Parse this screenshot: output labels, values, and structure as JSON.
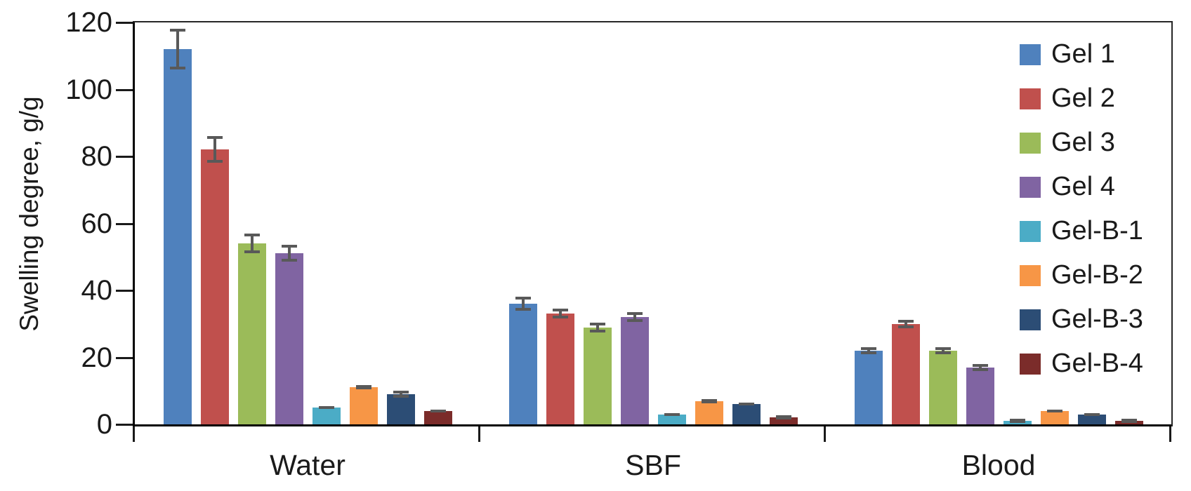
{
  "chart_data": {
    "type": "bar",
    "title": "",
    "ylabel": "Swelling degree, g/g",
    "xlabel": "",
    "categories": [
      "Water",
      "SBF",
      "Blood"
    ],
    "series": [
      {
        "name": "Gel 1",
        "color": "#4F81BD",
        "values": [
          112,
          36,
          22
        ],
        "errors": [
          6,
          2,
          1
        ]
      },
      {
        "name": "Gel 2",
        "color": "#C0504D",
        "values": [
          82,
          33,
          30
        ],
        "errors": [
          4,
          1.5,
          1.2
        ]
      },
      {
        "name": "Gel 3",
        "color": "#9BBB59",
        "values": [
          54,
          29,
          22
        ],
        "errors": [
          3,
          1.5,
          1
        ]
      },
      {
        "name": "Gel 4",
        "color": "#8064A2",
        "values": [
          51,
          32,
          17
        ],
        "errors": [
          2.5,
          1.5,
          1
        ]
      },
      {
        "name": "Gel-B-1",
        "color": "#4BACC6",
        "values": [
          5,
          3,
          1
        ],
        "errors": [
          0.5,
          0.4,
          0.3
        ]
      },
      {
        "name": "Gel-B-2",
        "color": "#F79646",
        "values": [
          11,
          7,
          4
        ],
        "errors": [
          0.7,
          0.6,
          0.4
        ]
      },
      {
        "name": "Gel-B-3",
        "color": "#2C4D75",
        "values": [
          9,
          6,
          3
        ],
        "errors": [
          1,
          0.4,
          0.5
        ]
      },
      {
        "name": "Gel-B-4",
        "color": "#7B2C2A",
        "values": [
          4,
          2,
          1
        ],
        "errors": [
          0.5,
          0.3,
          0.3
        ]
      }
    ],
    "ylim": [
      0,
      120
    ],
    "yticks": [
      0,
      20,
      40,
      60,
      80,
      100,
      120
    ],
    "grid": false,
    "legend_position": "top-right-inside",
    "error_bars": true,
    "colors": {
      "axis": "#000000",
      "plot_border": "#262626",
      "error_bar": "#595959",
      "text": "#1a1a1a"
    }
  }
}
